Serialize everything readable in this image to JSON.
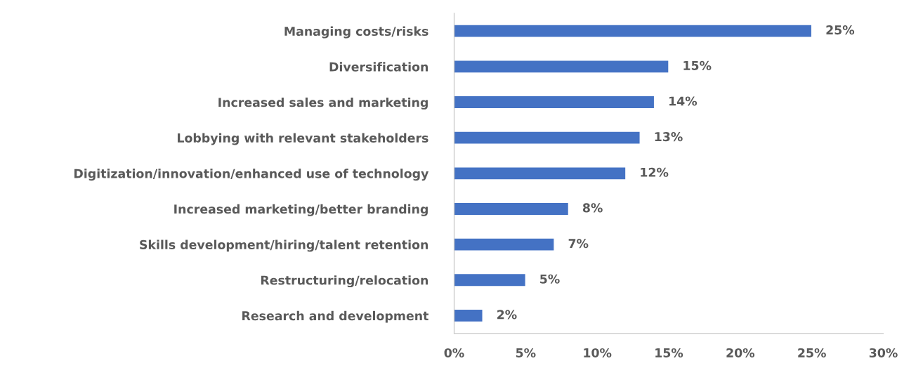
{
  "chart_data": {
    "type": "bar",
    "orientation": "horizontal",
    "categories": [
      "Managing costs/risks",
      "Diversification",
      "Increased sales and marketing",
      "Lobbying with relevant stakeholders",
      "Digitization/innovation/enhanced use of technology",
      "Increased marketing/better branding",
      "Skills development/hiring/talent retention",
      "Restructuring/relocation",
      "Research and development"
    ],
    "values": [
      25,
      15,
      14,
      13,
      12,
      8,
      7,
      5,
      2
    ],
    "color": "#4472c4",
    "xlim": [
      0,
      30
    ],
    "xticks": [
      {
        "value": 0,
        "label": "0%"
      },
      {
        "value": 5,
        "label": "5%"
      },
      {
        "value": 10,
        "label": "10%"
      },
      {
        "value": 15,
        "label": "15%"
      },
      {
        "value": 20,
        "label": "20%"
      },
      {
        "value": 25,
        "label": "25%"
      },
      {
        "value": 30,
        "label": "30%"
      }
    ],
    "value_labels": [
      "25%",
      "15%",
      "14%",
      "13%",
      "12%",
      "8%",
      "7%",
      "5%",
      "2%"
    ],
    "grid": false,
    "legend": false
  }
}
